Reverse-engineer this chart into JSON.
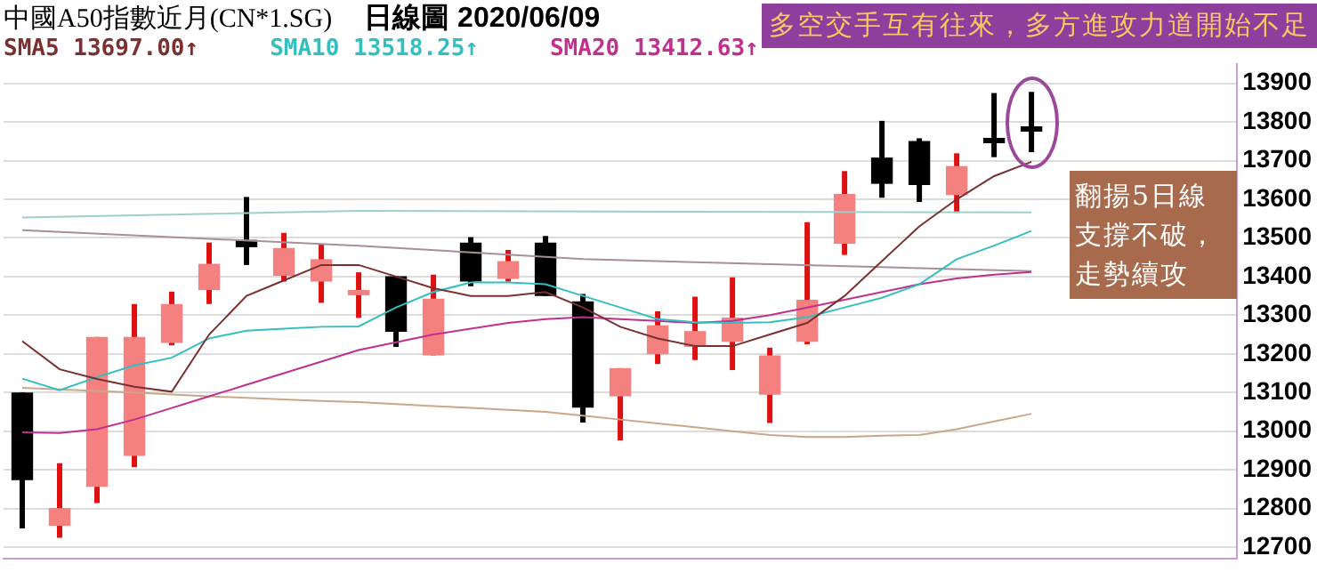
{
  "chart_data": {
    "type": "candlestick",
    "title": "中國A50指數近月(CN*1.SG)",
    "subtitle": "日線圖 2020/06/09",
    "categories": [
      null,
      null,
      null,
      null,
      null,
      null,
      null,
      null,
      null,
      null,
      null,
      null,
      null,
      null,
      null,
      null,
      null,
      null,
      null,
      null,
      null,
      null,
      null,
      null,
      null,
      null,
      null,
      null,
      null,
      null,
      null,
      null,
      null
    ],
    "ohlc": [
      [
        13100,
        13100,
        12748,
        12873
      ],
      [
        12755,
        12917,
        12724,
        12801
      ],
      [
        12856,
        13244,
        12814,
        13244
      ],
      [
        12936,
        13329,
        12907,
        13244
      ],
      [
        13228,
        13361,
        13222,
        13329
      ],
      [
        13365,
        13488,
        13329,
        13433
      ],
      [
        13495,
        13606,
        13430,
        13476
      ],
      [
        13402,
        13513,
        13387,
        13474
      ],
      [
        13387,
        13485,
        13332,
        13445
      ],
      [
        13355,
        13411,
        13293,
        13362
      ],
      [
        13401,
        13401,
        13218,
        13257
      ],
      [
        13196,
        13405,
        13196,
        13343
      ],
      [
        13488,
        13502,
        13375,
        13387
      ],
      [
        13394,
        13469,
        13387,
        13440
      ],
      [
        13488,
        13505,
        13350,
        13350
      ],
      [
        13336,
        13355,
        13022,
        13061
      ],
      [
        13090,
        13163,
        12976,
        13163
      ],
      [
        13199,
        13310,
        13174,
        13274
      ],
      [
        13218,
        13348,
        13184,
        13259
      ],
      [
        13231,
        13398,
        13158,
        13294
      ],
      [
        13094,
        13216,
        13021,
        13196
      ],
      [
        13231,
        13541,
        13225,
        13340
      ],
      [
        13485,
        13673,
        13456,
        13614
      ],
      [
        13708,
        13803,
        13604,
        13640
      ],
      [
        13751,
        13758,
        13593,
        13637
      ],
      [
        13611,
        13719,
        13565,
        13686
      ],
      [
        13756,
        13875,
        13709,
        13748
      ],
      [
        13787,
        13878,
        13722,
        13777
      ],
      null,
      null,
      null,
      null,
      null
    ],
    "colors": [
      "#000000",
      "#f48080",
      "#f48080",
      "#f48080",
      "#f48080",
      "#f48080",
      "#000000",
      "#f48080",
      "#f48080",
      "#f48080",
      "#000000",
      "#f48080",
      "#000000",
      "#f48080",
      "#000000",
      "#000000",
      "#f48080",
      "#f48080",
      "#f48080",
      "#f48080",
      "#f48080",
      "#f48080",
      "#f48080",
      "#000000",
      "#000000",
      "#f48080",
      "#000000",
      "#000000",
      null,
      null,
      null,
      null,
      null
    ],
    "series": [
      {
        "type": "line",
        "name": "SMA5 13697.00↑",
        "color": "#7a3030",
        "values": [
          13233,
          13160,
          13135,
          13115,
          13102,
          13250,
          13350,
          13390,
          13430,
          13430,
          13400,
          13370,
          13350,
          13350,
          13360,
          13320,
          13270,
          13240,
          13220,
          13220,
          13250,
          13280,
          13350,
          13440,
          13530,
          13600,
          13660,
          13697,
          null,
          null,
          null,
          null,
          null
        ]
      },
      {
        "type": "line",
        "name": "SMA10 13518.25↑",
        "color": "#33bfbf",
        "values": [
          13136,
          13106,
          13140,
          13170,
          13190,
          13240,
          13260,
          13265,
          13270,
          13271,
          13320,
          13360,
          13385,
          13385,
          13380,
          13350,
          13320,
          13290,
          13282,
          13280,
          13282,
          13295,
          13320,
          13345,
          13380,
          13445,
          13480,
          13518,
          null,
          null,
          null,
          null,
          null
        ]
      },
      {
        "type": "line",
        "name": "SMA20 13412.63↑",
        "color": "#c0308f",
        "values": [
          12997,
          12995,
          13005,
          13030,
          13060,
          13090,
          13120,
          13150,
          13180,
          13210,
          13230,
          13250,
          13265,
          13280,
          13290,
          13295,
          13290,
          13285,
          13280,
          13285,
          13300,
          13320,
          13340,
          13360,
          13380,
          13395,
          13405,
          13412,
          null,
          null,
          null,
          null,
          null
        ]
      },
      {
        "type": "line",
        "color": "#c8a888",
        "values": [
          13112,
          13108,
          13104,
          13100,
          13095,
          13090,
          13086,
          13082,
          13078,
          13075,
          13070,
          13065,
          13060,
          13055,
          13050,
          13040,
          13030,
          13020,
          13010,
          13000,
          12990,
          12985,
          12985,
          12988,
          12990,
          13005,
          13025,
          13045,
          null,
          null,
          null,
          null,
          null
        ]
      },
      {
        "type": "line",
        "color": "#9cd0c8",
        "values": [
          13553,
          null,
          null,
          null,
          null,
          null,
          null,
          null,
          null,
          13570,
          null,
          null,
          null,
          null,
          null,
          null,
          null,
          null,
          null,
          null,
          null,
          null,
          null,
          null,
          null,
          null,
          null,
          13566,
          null,
          null,
          null,
          null,
          null
        ]
      },
      {
        "type": "line",
        "color": "#a89098",
        "values": [
          13520,
          null,
          null,
          null,
          null,
          null,
          null,
          null,
          null,
          13480,
          null,
          null,
          null,
          null,
          null,
          13445,
          null,
          null,
          null,
          null,
          null,
          null,
          null,
          null,
          null,
          null,
          null,
          13414,
          null,
          null,
          null,
          null,
          null
        ]
      }
    ],
    "ylim": [
      12670,
      13950
    ],
    "yticks": [
      12700,
      12800,
      12900,
      13000,
      13100,
      13200,
      13300,
      13400,
      13500,
      13600,
      13700,
      13800,
      13900
    ],
    "tick_labels": "y",
    "grid": "y",
    "legend": "top left",
    "annotations": [
      "多空交手互有往來，多方進攻力道開始不足",
      "翻揚5日線支撐不破，走勢續攻"
    ]
  }
}
